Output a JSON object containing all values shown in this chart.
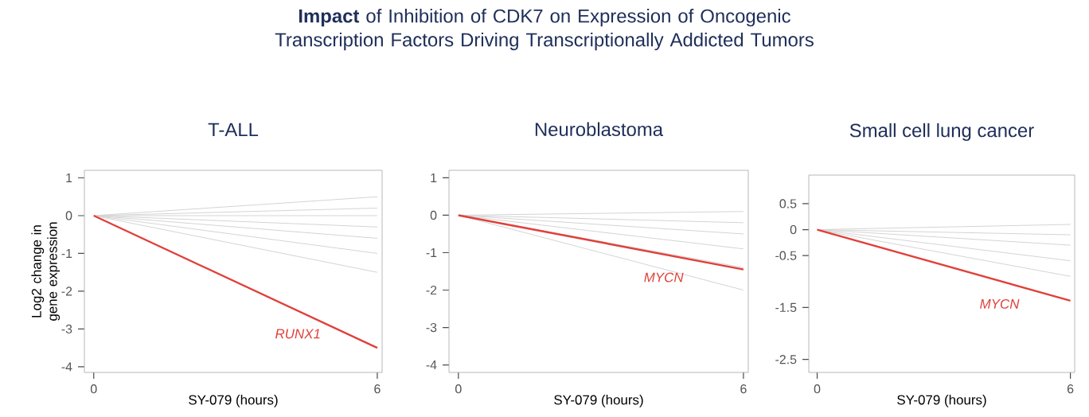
{
  "chart_data": [
    {
      "type": "line",
      "title": "T-ALL",
      "xlabel": "SY-079 (hours)",
      "ylabel": "Log2 change in gene expression",
      "annotations": [
        "**Impact** of Inhibition of CDK7 on Expression of Oncogenic Transcription Factors Driving Transcriptionally Addicted Tumors"
      ],
      "categories": [
        "0",
        "6"
      ],
      "ylim": [
        -4.15,
        1.2
      ],
      "yticks": [
        -4,
        -3,
        -2,
        -1,
        0,
        1
      ],
      "series": [
        {
          "color": "#d4d4d4",
          "values": [
            0,
            0.5
          ]
        },
        {
          "color": "#d4d4d4",
          "values": [
            0,
            0.2
          ]
        },
        {
          "color": "#d4d4d4",
          "values": [
            0,
            0
          ]
        },
        {
          "color": "#d4d4d4",
          "values": [
            0,
            -0.3
          ]
        },
        {
          "color": "#d4d4d4",
          "values": [
            0,
            -0.6
          ]
        },
        {
          "color": "#d4d4d4",
          "values": [
            0,
            -1.0
          ]
        },
        {
          "color": "#d4d4d4",
          "values": [
            0,
            -1.5
          ]
        },
        {
          "name": "RUNX1",
          "color": "#e0403a",
          "values": [
            0,
            -3.5
          ]
        }
      ]
    },
    {
      "type": "line",
      "title": "Neuroblastoma",
      "xlabel": "SY-079 (hours)",
      "categories": [
        "0",
        "6"
      ],
      "ylim": [
        -4.2,
        1.2
      ],
      "yticks": [
        -4,
        -3,
        -2,
        -1,
        0,
        1
      ],
      "series": [
        {
          "color": "#d4d4d4",
          "values": [
            0,
            0.1
          ]
        },
        {
          "color": "#d4d4d4",
          "values": [
            0,
            -0.2
          ]
        },
        {
          "color": "#d4d4d4",
          "values": [
            0,
            -0.5
          ]
        },
        {
          "color": "#d4d4d4",
          "values": [
            0,
            -0.9
          ]
        },
        {
          "color": "#d4d4d4",
          "values": [
            0,
            -1.4
          ]
        },
        {
          "color": "#d4d4d4",
          "values": [
            0,
            -2.0
          ]
        },
        {
          "name": "MYCN",
          "color": "#e0403a",
          "values": [
            0,
            -1.45
          ]
        }
      ]
    },
    {
      "type": "line",
      "title": "Small cell lung cancer",
      "xlabel": "SY-079 (hours)",
      "categories": [
        "0",
        "6"
      ],
      "ylim": [
        -2.75,
        1.05
      ],
      "yticks": [
        0.5,
        0,
        -0.5,
        -1.5,
        -2.5
      ],
      "series": [
        {
          "color": "#d4d4d4",
          "values": [
            0,
            0.1
          ]
        },
        {
          "color": "#d4d4d4",
          "values": [
            0,
            -0.1
          ]
        },
        {
          "color": "#d4d4d4",
          "values": [
            0,
            -0.3
          ]
        },
        {
          "color": "#d4d4d4",
          "values": [
            0,
            -0.6
          ]
        },
        {
          "color": "#d4d4d4",
          "values": [
            0,
            -0.9
          ]
        },
        {
          "name": "MYCN",
          "color": "#e0403a",
          "values": [
            0,
            -1.37
          ]
        }
      ]
    }
  ]
}
